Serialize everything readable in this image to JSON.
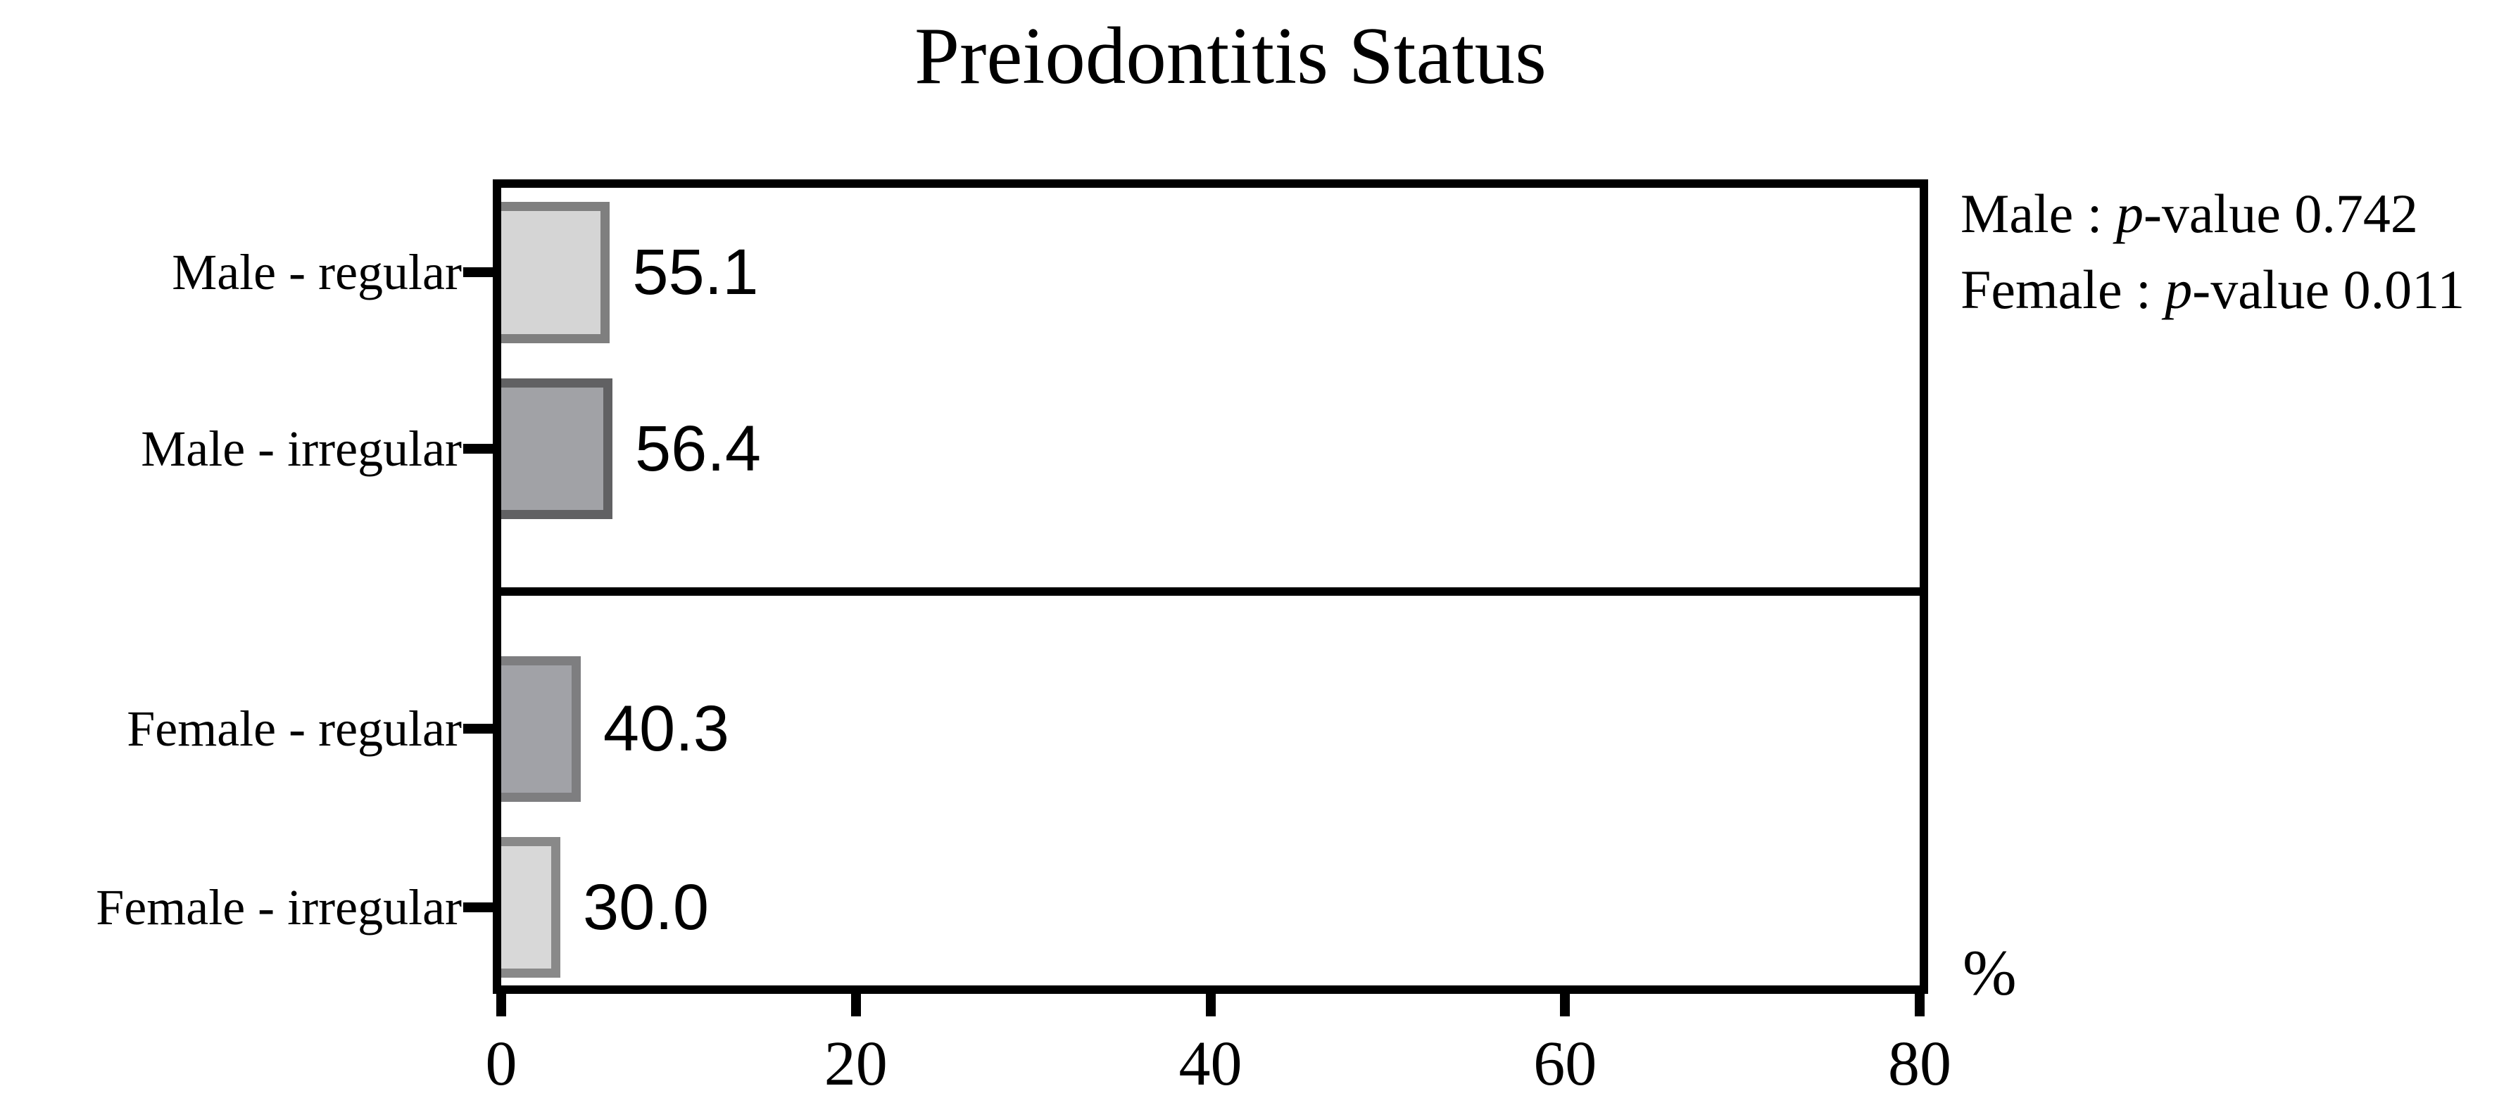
{
  "title": "Preiodontitis Status",
  "annotation": {
    "line1": {
      "prefix": "Male : ",
      "italic": "p",
      "suffix": "-value 0.742"
    },
    "line2": {
      "prefix": "Female : ",
      "italic": "p",
      "suffix": "-value 0.011"
    }
  },
  "axis": {
    "label": "%",
    "ticks": [
      "0",
      "20",
      "40",
      "60",
      "80"
    ]
  },
  "chart_data": {
    "type": "bar",
    "orientation": "horizontal",
    "title": "Preiodontitis Status",
    "categories": [
      "Male - regular",
      "Male - irregular",
      "Female - regular",
      "Female - irregular"
    ],
    "values": [
      55.1,
      56.4,
      40.3,
      30.0
    ],
    "xlabel": "%",
    "xlim": [
      0,
      80
    ],
    "xticks": [
      0,
      20,
      40,
      60,
      80
    ],
    "grid": false,
    "legend": "none",
    "panels": [
      {
        "group": "Male",
        "categories": [
          "Male - regular",
          "Male - irregular"
        ]
      },
      {
        "group": "Female",
        "categories": [
          "Female - regular",
          "Female - irregular"
        ]
      }
    ],
    "annotations": [
      "Male : p-value 0.742",
      "Female : p-value 0.011"
    ],
    "bars": [
      {
        "label": "Male - regular",
        "value": 55.1,
        "display": "55.1",
        "fill": "#d5d5d5",
        "border": "#7f7f7f"
      },
      {
        "label": "Male - irregular",
        "value": 56.4,
        "display": "56.4",
        "fill": "#a1a2a6",
        "border": "#616163"
      },
      {
        "label": "Female - regular",
        "value": 40.3,
        "display": "40.3",
        "fill": "#a1a2a7",
        "border": "#7e7e80"
      },
      {
        "label": "Female - irregular",
        "value": 30.0,
        "display": "30.0",
        "fill": "#d8d8d8",
        "border": "#898989"
      }
    ],
    "frame_color": "#000000",
    "background_color": "#ffffff"
  }
}
